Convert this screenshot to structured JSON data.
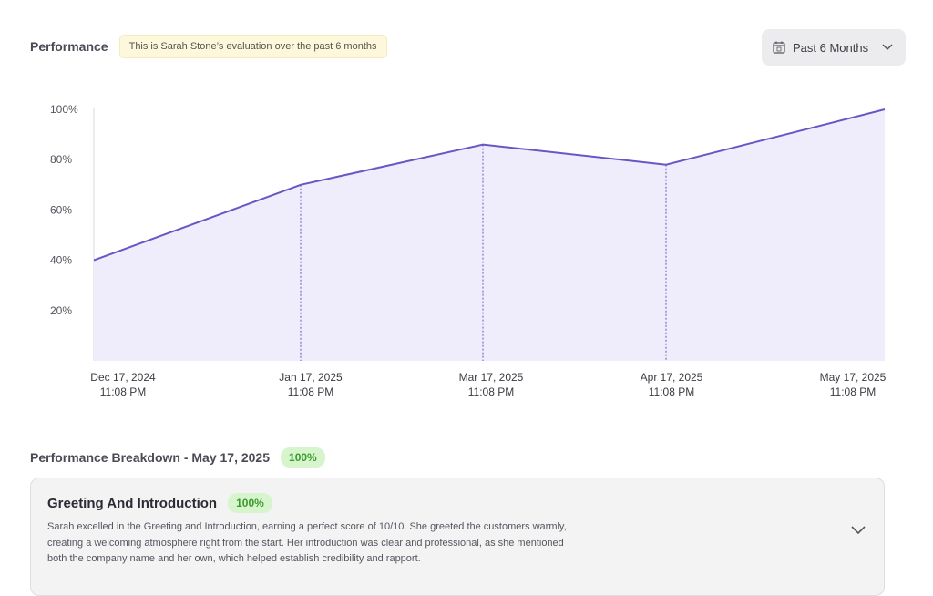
{
  "header": {
    "title": "Performance",
    "note": "This is Sarah Stone’s evaluation over the past 6 months",
    "period_select": {
      "label": "Past 6 Months",
      "icon": "calendar-icon",
      "chevron": "chevron-down-icon"
    }
  },
  "chart_data": {
    "type": "area",
    "x": [
      {
        "date": "Dec 17, 2024",
        "time": "11:08 PM"
      },
      {
        "date": "Jan 17, 2025",
        "time": "11:08 PM"
      },
      {
        "date": "Mar 17, 2025",
        "time": "11:08 PM"
      },
      {
        "date": "Apr 17, 2025",
        "time": "11:08 PM"
      },
      {
        "date": "May 17, 2025",
        "time": "11:08 PM"
      }
    ],
    "values": [
      40,
      70,
      86,
      78,
      100
    ],
    "ylim": [
      0,
      100
    ],
    "yticks": [
      "20%",
      "40%",
      "60%",
      "80%",
      "100%"
    ],
    "line_color": "#6b55c4",
    "fill_color": "#efecfc"
  },
  "breakdown": {
    "title": "Performance Breakdown - May 17, 2025",
    "score": "100%",
    "card": {
      "title": "Greeting And Introduction",
      "score": "100%",
      "body": "Sarah excelled in the Greeting and Introduction, earning a perfect score of 10/10. She greeted the customers warmly, creating a welcoming atmosphere right from the start. Her introduction was clear and professional, as she mentioned both the company name and her own, which helped establish credibility and rapport.",
      "chevron": "chevron-down-icon"
    }
  }
}
